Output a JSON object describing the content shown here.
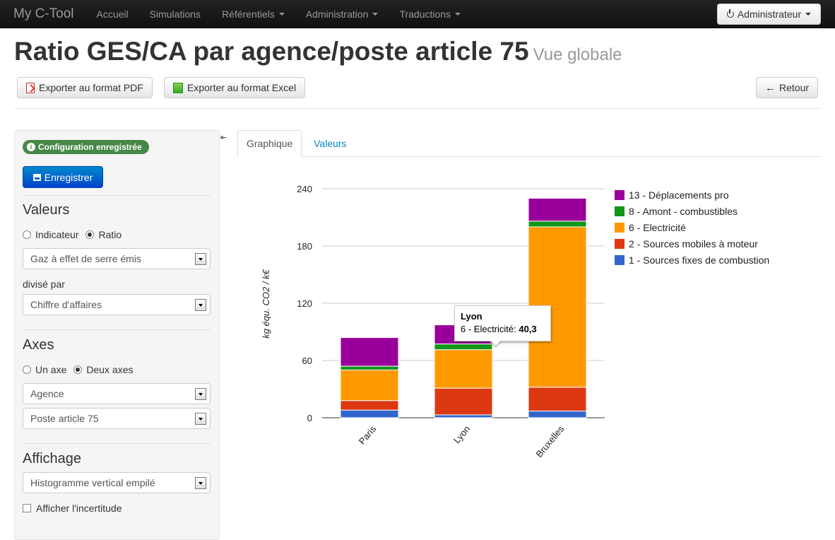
{
  "navbar": {
    "brand": "My C-Tool",
    "items": [
      {
        "label": "Accueil",
        "dropdown": false
      },
      {
        "label": "Simulations",
        "dropdown": false
      },
      {
        "label": "Référentiels",
        "dropdown": true
      },
      {
        "label": "Administration",
        "dropdown": true
      },
      {
        "label": "Traductions",
        "dropdown": true
      }
    ],
    "user_label": "Administrateur"
  },
  "header": {
    "title": "Ratio GES/CA par agence/poste article 75",
    "subtitle": "Vue globale",
    "export_pdf": "Exporter au format PDF",
    "export_excel": "Exporter au format Excel",
    "back": "Retour"
  },
  "sidebar": {
    "badge": "Configuration enregistrée",
    "save_button": "Enregistrer",
    "values_section": {
      "title": "Valeurs",
      "radio_indicator": "Indicateur",
      "radio_ratio": "Ratio",
      "selected": "ratio",
      "numerator": "Gaz à effet de serre émis",
      "divided_by": "divisé par",
      "denominator": "Chiffre d'affaires"
    },
    "axes_section": {
      "title": "Axes",
      "radio_one": "Un axe",
      "radio_two": "Deux axes",
      "selected": "two",
      "axis1": "Agence",
      "axis2": "Poste article 75"
    },
    "display_section": {
      "title": "Affichage",
      "chart_type": "Histogramme vertical empilé",
      "show_uncertainty": "Afficher l'incertitude",
      "uncertainty_checked": false
    }
  },
  "tabs": [
    {
      "label": "Graphique",
      "active": true
    },
    {
      "label": "Valeurs",
      "active": false
    }
  ],
  "chart_data": {
    "type": "bar",
    "stacked": true,
    "categories": [
      "Paris",
      "Lyon",
      "Bruxelles"
    ],
    "ylabel": "kg équ. CO2 / k€",
    "ylim": [
      0,
      240
    ],
    "yticks": [
      0,
      60,
      120,
      180,
      240
    ],
    "grid": true,
    "legend_position": "right",
    "series": [
      {
        "name": "1 - Sources fixes de combustion",
        "color": "#3366cc",
        "values": [
          8,
          3,
          7
        ]
      },
      {
        "name": "2 - Sources mobiles à moteur",
        "color": "#dc3912",
        "values": [
          10,
          28,
          25
        ]
      },
      {
        "name": "6 - Electricité",
        "color": "#ff9900",
        "values": [
          32,
          40.3,
          168
        ]
      },
      {
        "name": "8 - Amont - combustibles",
        "color": "#109618",
        "values": [
          4,
          6,
          6
        ]
      },
      {
        "name": "13 - Déplacements pro",
        "color": "#990099",
        "values": [
          30,
          20,
          24
        ]
      }
    ],
    "tooltip": {
      "category": "Lyon",
      "series": "6 - Electricité",
      "value": "40,3"
    }
  }
}
